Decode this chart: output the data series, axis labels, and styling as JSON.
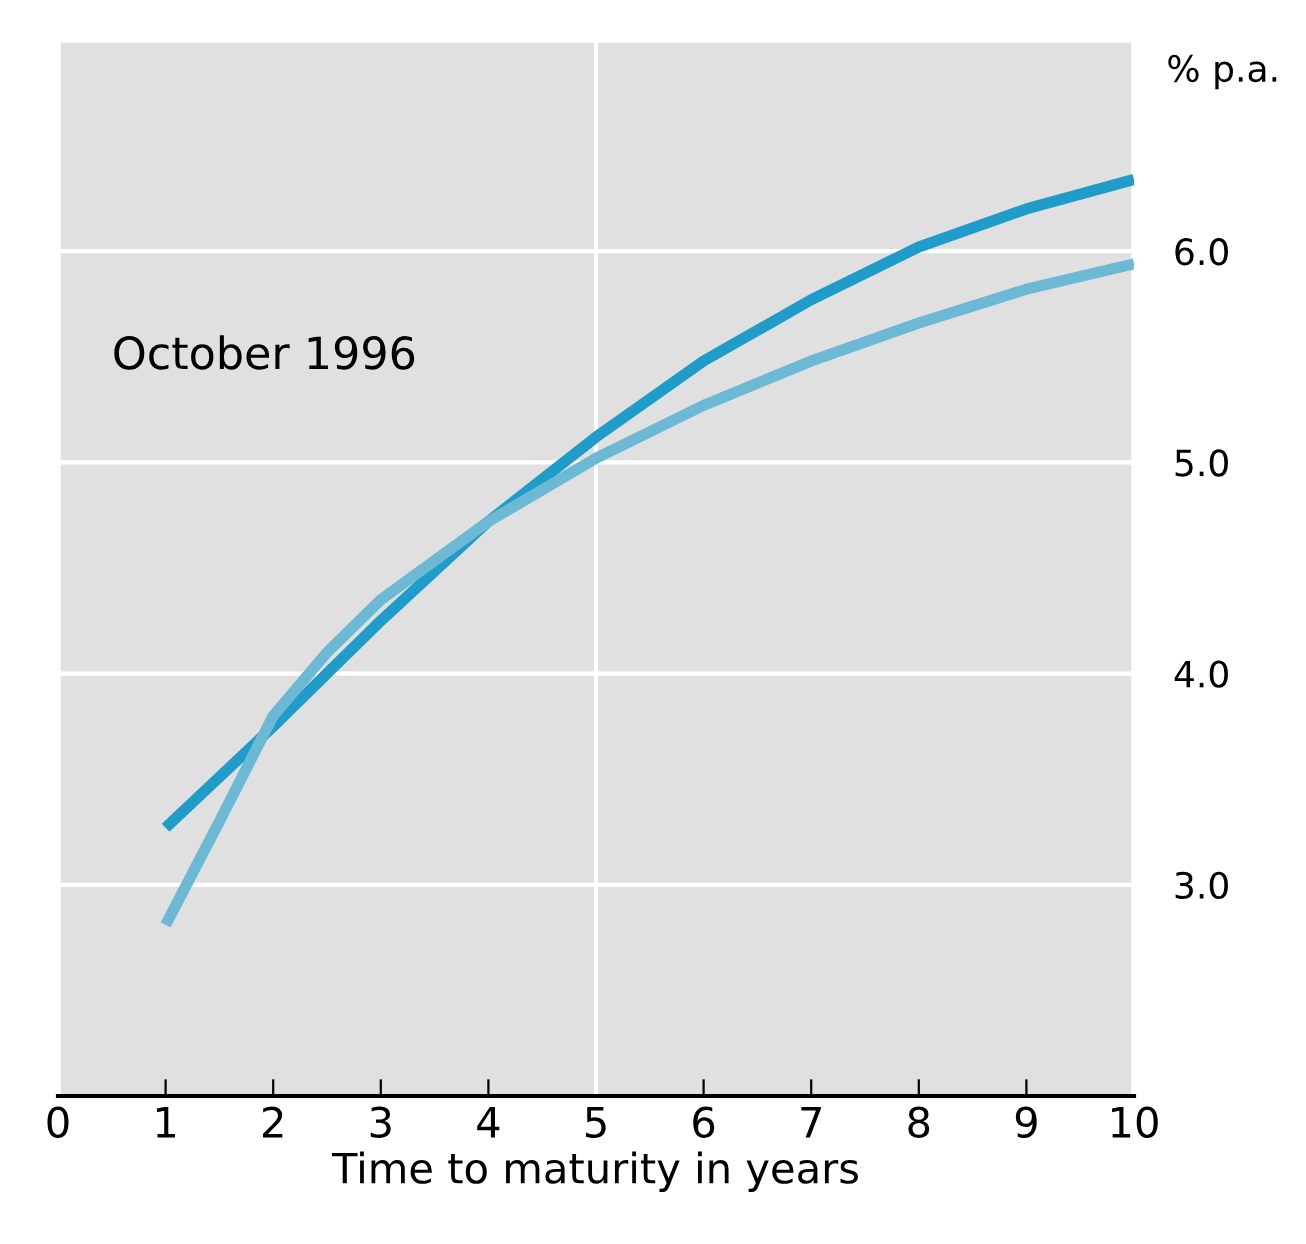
{
  "chart_data": {
    "type": "line",
    "xlabel": "Time to maturity in years",
    "ylabel": "% p.a.",
    "annotations": [
      "October 1996"
    ],
    "series": [
      {
        "color": "#1f9cc9",
        "x": [
          1,
          2,
          3,
          4,
          5,
          6,
          7,
          8,
          9,
          10
        ],
        "values": [
          3.27,
          3.75,
          4.25,
          4.72,
          5.12,
          5.48,
          5.77,
          6.02,
          6.2,
          6.34
        ]
      },
      {
        "color": "#6cb9d5",
        "x": [
          1,
          1.5,
          2,
          2.5,
          3,
          4,
          5,
          6,
          7,
          8,
          9,
          10
        ],
        "values": [
          2.81,
          3.3,
          3.8,
          4.1,
          4.35,
          4.72,
          5.02,
          5.27,
          5.48,
          5.66,
          5.82,
          5.94
        ]
      }
    ],
    "xlim": [
      0,
      10
    ],
    "ylim": [
      2,
      7
    ],
    "xticks": [
      0,
      1,
      2,
      3,
      4,
      5,
      6,
      7,
      8,
      9,
      10
    ],
    "yticks": [
      {
        "value": 3,
        "label": "3.0"
      },
      {
        "value": 4,
        "label": "4.0"
      },
      {
        "value": 5,
        "label": "5.0"
      },
      {
        "value": 6,
        "label": "6.0"
      }
    ],
    "grid": "y",
    "ref_lines": [
      {
        "axis": "x",
        "value": 5,
        "color": "#ffffff"
      }
    ],
    "marker": "none",
    "line_style": "solid"
  }
}
